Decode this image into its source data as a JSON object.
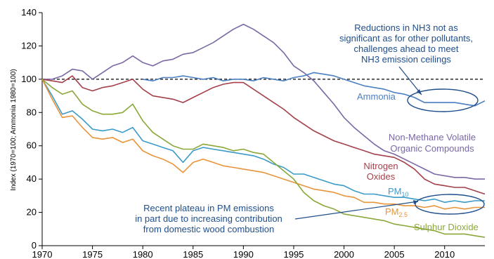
{
  "chart_data": {
    "type": "line",
    "title": "",
    "ylabel": "Index (1970=100; Ammonia 1980=100)",
    "xlabel": "",
    "xlim": [
      1970,
      2014
    ],
    "ylim": [
      0,
      140
    ],
    "x_ticks": [
      "1970",
      "1975",
      "1980",
      "1985",
      "1990",
      "1995",
      "2000",
      "2005",
      "2010"
    ],
    "y_ticks": [
      "0",
      "20",
      "40",
      "60",
      "80",
      "100",
      "120",
      "140"
    ],
    "reference_line": 100,
    "colors": {
      "nmvoc": "#7b68a6",
      "ammonia": "#4a7fc1",
      "nox": "#a3404a",
      "pm10": "#3b9bc8",
      "pm25": "#e8943a",
      "so2": "#8aa83a",
      "annotation": "#1f4e8c"
    },
    "series": [
      {
        "name": "Non-Methane Volatile Organic Compounds",
        "key": "nmvoc",
        "x": [
          1970,
          1971,
          1972,
          1973,
          1974,
          1975,
          1976,
          1977,
          1978,
          1979,
          1980,
          1981,
          1982,
          1983,
          1984,
          1985,
          1986,
          1987,
          1988,
          1989,
          1990,
          1991,
          1992,
          1993,
          1994,
          1995,
          1996,
          1997,
          1998,
          1999,
          2000,
          2001,
          2002,
          2003,
          2004,
          2005,
          2006,
          2007,
          2008,
          2009,
          2010,
          2011,
          2012,
          2013,
          2014
        ],
        "values": [
          100,
          100,
          102,
          106,
          105,
          100,
          104,
          108,
          110,
          114,
          110,
          108,
          111,
          112,
          115,
          116,
          119,
          122,
          126,
          130,
          133,
          130,
          126,
          122,
          116,
          108,
          104,
          99,
          92,
          85,
          77,
          71,
          66,
          61,
          57,
          55,
          52,
          49,
          46,
          43,
          42,
          41,
          41,
          40,
          40
        ]
      },
      {
        "name": "Ammonia",
        "key": "ammonia",
        "x": [
          1980,
          1981,
          1982,
          1983,
          1984,
          1985,
          1986,
          1987,
          1988,
          1989,
          1990,
          1991,
          1992,
          1993,
          1994,
          1995,
          1996,
          1997,
          1998,
          1999,
          2000,
          2001,
          2002,
          2003,
          2004,
          2005,
          2006,
          2007,
          2008,
          2009,
          2010,
          2011,
          2012,
          2013,
          2014
        ],
        "values": [
          100,
          99,
          101,
          101,
          102,
          101,
          100,
          101,
          99,
          100,
          100,
          99,
          101,
          100,
          99,
          101,
          102,
          104,
          103,
          102,
          100,
          98,
          96,
          95,
          94,
          92,
          91,
          89,
          86,
          86,
          86,
          86,
          85,
          84,
          87
        ]
      },
      {
        "name": "Nitrogen Oxides",
        "key": "nox",
        "x": [
          1970,
          1971,
          1972,
          1973,
          1974,
          1975,
          1976,
          1977,
          1978,
          1979,
          1980,
          1981,
          1982,
          1983,
          1984,
          1985,
          1986,
          1987,
          1988,
          1989,
          1990,
          1991,
          1992,
          1993,
          1994,
          1995,
          1996,
          1997,
          1998,
          1999,
          2000,
          2001,
          2002,
          2003,
          2004,
          2005,
          2006,
          2007,
          2008,
          2009,
          2010,
          2011,
          2012,
          2013,
          2014
        ],
        "values": [
          100,
          99,
          98,
          102,
          95,
          93,
          95,
          96,
          98,
          100,
          94,
          90,
          89,
          88,
          86,
          89,
          92,
          95,
          97,
          98,
          98,
          94,
          90,
          86,
          82,
          77,
          73,
          69,
          66,
          63,
          61,
          59,
          57,
          55,
          54,
          53,
          50,
          46,
          40,
          37,
          36,
          35,
          35,
          33,
          31
        ]
      },
      {
        "name": "PM10",
        "key": "pm10",
        "x": [
          1970,
          1971,
          1972,
          1973,
          1974,
          1975,
          1976,
          1977,
          1978,
          1979,
          1980,
          1981,
          1982,
          1983,
          1984,
          1985,
          1986,
          1987,
          1988,
          1989,
          1990,
          1991,
          1992,
          1993,
          1994,
          1995,
          1996,
          1997,
          1998,
          1999,
          2000,
          2001,
          2002,
          2003,
          2004,
          2005,
          2006,
          2007,
          2008,
          2009,
          2010,
          2011,
          2012,
          2013,
          2014
        ],
        "values": [
          100,
          90,
          79,
          81,
          76,
          70,
          69,
          70,
          68,
          71,
          63,
          61,
          59,
          57,
          50,
          57,
          59,
          58,
          57,
          56,
          55,
          54,
          52,
          49,
          47,
          43,
          43,
          41,
          39,
          37,
          36,
          33,
          31,
          31,
          30,
          29,
          29,
          28,
          27,
          28,
          26,
          27,
          26,
          27,
          27
        ]
      },
      {
        "name": "PM2.5",
        "key": "pm25",
        "x": [
          1970,
          1971,
          1972,
          1973,
          1974,
          1975,
          1976,
          1977,
          1978,
          1979,
          1980,
          1981,
          1982,
          1983,
          1984,
          1985,
          1986,
          1987,
          1988,
          1989,
          1990,
          1991,
          1992,
          1993,
          1994,
          1995,
          1996,
          1997,
          1998,
          1999,
          2000,
          2001,
          2002,
          2003,
          2004,
          2005,
          2006,
          2007,
          2008,
          2009,
          2010,
          2011,
          2012,
          2013,
          2014
        ],
        "values": [
          100,
          88,
          77,
          78,
          71,
          65,
          64,
          65,
          62,
          64,
          57,
          54,
          52,
          49,
          44,
          50,
          52,
          50,
          48,
          47,
          46,
          45,
          44,
          42,
          40,
          38,
          36,
          34,
          33,
          32,
          30,
          29,
          26,
          26,
          25,
          25,
          24,
          24,
          23,
          24,
          22,
          23,
          22,
          23,
          23
        ]
      },
      {
        "name": "Sulphur Dioxide",
        "key": "so2",
        "x": [
          1970,
          1971,
          1972,
          1973,
          1974,
          1975,
          1976,
          1977,
          1978,
          1979,
          1980,
          1981,
          1982,
          1983,
          1984,
          1985,
          1986,
          1987,
          1988,
          1989,
          1990,
          1991,
          1992,
          1993,
          1994,
          1995,
          1996,
          1997,
          1998,
          1999,
          2000,
          2001,
          2002,
          2003,
          2004,
          2005,
          2006,
          2007,
          2008,
          2009,
          2010,
          2011,
          2012,
          2013,
          2014
        ],
        "values": [
          100,
          95,
          91,
          93,
          85,
          81,
          79,
          79,
          80,
          85,
          75,
          68,
          64,
          60,
          58,
          58,
          61,
          60,
          59,
          57,
          58,
          56,
          55,
          50,
          45,
          40,
          32,
          27,
          24,
          22,
          19,
          18,
          17,
          16,
          15,
          13,
          12,
          11,
          10,
          9,
          7,
          7,
          7,
          6,
          5
        ]
      }
    ],
    "series_labels": {
      "nmvoc_line1": "Non-Methane Volatile",
      "nmvoc_line2": "Organic Compounds",
      "ammonia": "Ammonia",
      "nox_line1": "Nitrogen",
      "nox_line2": "Oxides",
      "pm10_main": "PM",
      "pm10_sub": "10",
      "pm25_main": "PM",
      "pm25_sub": "2.5",
      "so2": "Sulphur Dioxide"
    },
    "annotations": {
      "ammonia_note": [
        "Reductions in NH3 not as",
        "significant as for other pollutants,",
        "challenges ahead to meet",
        "NH3 emission ceilings"
      ],
      "pm_note": [
        "Recent plateau in PM emissions",
        "in part due to increasing contribution",
        "from domestic wood combustion"
      ]
    }
  }
}
